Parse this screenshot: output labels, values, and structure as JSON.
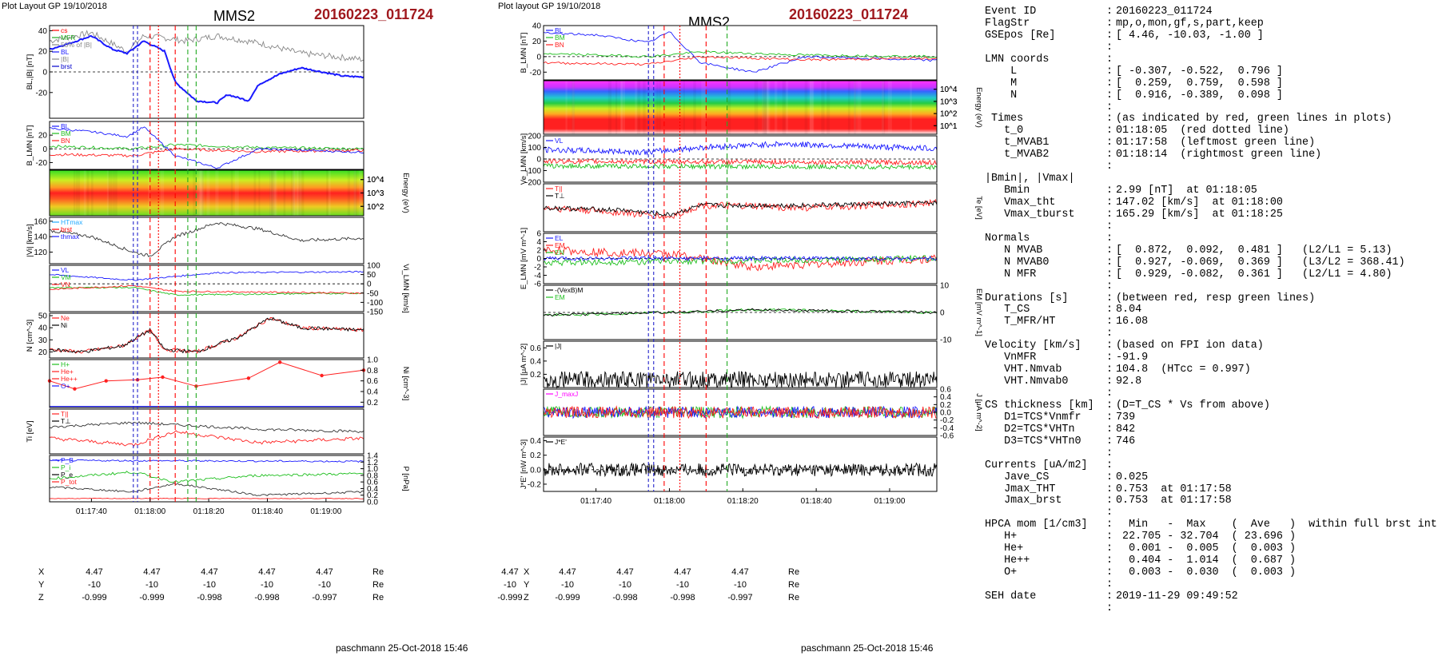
{
  "header": {
    "left_plot_layout": "Plot Layout GP 19/10/2018",
    "right_plot_layout": "Plot layout GP 19/10/2018",
    "spacecraft": "MMS2",
    "event_id": "20160223_011724"
  },
  "footer": {
    "left": "paschmann 25-Oct-2018 15:46",
    "right": "paschmann 25-Oct-2018 15:46"
  },
  "time_ticks": [
    "01:17:40",
    "01:18:00",
    "01:18:20",
    "01:18:40",
    "01:19:00"
  ],
  "position_table": {
    "rows": [
      {
        "label": "X",
        "values": [
          "4.47",
          "4.47",
          "4.47",
          "4.47",
          "4.47"
        ],
        "unit": "Re"
      },
      {
        "label": "Y",
        "values": [
          "-10",
          "-10",
          "-10",
          "-10",
          "-10"
        ],
        "unit": "Re"
      },
      {
        "label": "Z",
        "values": [
          "-0.999",
          "-0.999",
          "-0.998",
          "-0.998",
          "-0.997"
        ],
        "unit": "Re"
      }
    ]
  },
  "colors": {
    "id_red": "#a0191e",
    "L": "#1a1aff",
    "M": "#1fbf1f",
    "N": "#ff2020",
    "black": "#000000",
    "red_marker": "#ff0000",
    "green_marker": "#22aa22",
    "blue_marker": "#2222cc",
    "magenta": "#ff00ff",
    "cyan": "#22aaff"
  },
  "chart_data": [
    {
      "type": "line",
      "panel": "BL_|B|",
      "ylabel": "BL,|B| [nT]",
      "ylim": [
        -45,
        45
      ],
      "yticks": [
        "40",
        "20",
        "0",
        "-20"
      ],
      "legend": [
        "cs",
        "MFR",
        "50% of |B|",
        "BL",
        "|B|",
        "brst"
      ],
      "series": [
        {
          "name": "BL",
          "color": "blue",
          "x": [
            0,
            10,
            20,
            30,
            37,
            45,
            55,
            60,
            70,
            80,
            85,
            95,
            100,
            110,
            120,
            130,
            140,
            150
          ],
          "y": [
            22,
            28,
            35,
            22,
            18,
            30,
            20,
            -10,
            -28,
            -30,
            -22,
            -28,
            -12,
            -2,
            4,
            0,
            -4,
            -5
          ]
        },
        {
          "name": "|B|",
          "color": "gray",
          "x": [
            0,
            20,
            37,
            45,
            55,
            65,
            80,
            100,
            120,
            150
          ],
          "y": [
            30,
            38,
            20,
            35,
            33,
            30,
            35,
            28,
            18,
            12
          ]
        }
      ]
    },
    {
      "type": "line",
      "panel": "B_LMN",
      "ylabel": "B_LMN [nT]",
      "ylim": [
        -30,
        40
      ],
      "yticks": [
        "20",
        "0",
        "-20"
      ],
      "legend": [
        "BL",
        "BM",
        "BN"
      ],
      "series": [
        {
          "name": "BL",
          "x": [
            0,
            20,
            37,
            45,
            60,
            80,
            100,
            150
          ],
          "y": [
            30,
            25,
            18,
            32,
            -10,
            -28,
            0,
            -5
          ]
        },
        {
          "name": "BM",
          "x": [
            0,
            40,
            60,
            100,
            150
          ],
          "y": [
            4,
            0,
            6,
            2,
            0
          ]
        },
        {
          "name": "BN",
          "x": [
            0,
            40,
            60,
            100,
            150
          ],
          "y": [
            -8,
            -10,
            0,
            -4,
            -2
          ]
        }
      ]
    },
    {
      "type": "heatmap",
      "panel": "ion_energy_spectrogram",
      "ylabel": "Energy (eV)",
      "yticks": [
        "10^4",
        "10^3",
        "10^2"
      ]
    },
    {
      "type": "line",
      "panel": "|Vi|",
      "ylabel": "|Vi| [km/s]",
      "ylim": [
        105,
        165
      ],
      "yticks": [
        "160",
        "140",
        "120"
      ],
      "legend": [
        "HTmax",
        "brst",
        "thmax"
      ],
      "series": [
        {
          "name": "|Vi|",
          "x": [
            0,
            20,
            40,
            48,
            60,
            80,
            100,
            120,
            150
          ],
          "y": [
            148,
            140,
            120,
            115,
            140,
            158,
            150,
            135,
            138
          ]
        }
      ]
    },
    {
      "type": "line",
      "panel": "Vi_LMN",
      "ylabel": "Vi_LMN [km/s]",
      "ylim": [
        -150,
        100
      ],
      "yticks": [
        "100",
        "50",
        "0",
        "-50",
        "-100",
        "-150"
      ],
      "legend": [
        "VL",
        "VM",
        "VN"
      ],
      "series": [
        {
          "name": "VL",
          "x": [
            0,
            40,
            60,
            80,
            150
          ],
          "y": [
            50,
            20,
            40,
            60,
            65
          ]
        },
        {
          "name": "VM",
          "x": [
            0,
            40,
            60,
            150
          ],
          "y": [
            -20,
            -20,
            -60,
            -50
          ]
        },
        {
          "name": "VN",
          "x": [
            0,
            40,
            60,
            150
          ],
          "y": [
            -30,
            -10,
            -40,
            -50
          ]
        }
      ]
    },
    {
      "type": "line",
      "panel": "N",
      "ylabel": "N [cm^-3]",
      "ylim": [
        15,
        52
      ],
      "yticks": [
        "50",
        "40",
        "30",
        "20"
      ],
      "legend": [
        "Ne",
        "Ni"
      ],
      "series": [
        {
          "name": "Ne",
          "x": [
            0,
            15,
            35,
            48,
            55,
            70,
            90,
            105,
            120,
            150
          ],
          "y": [
            22,
            20,
            25,
            38,
            22,
            20,
            32,
            48,
            40,
            38
          ]
        },
        {
          "name": "Ni",
          "x": [
            0,
            15,
            35,
            48,
            55,
            70,
            90,
            105,
            120,
            150
          ],
          "y": [
            22,
            20,
            25,
            38,
            22,
            20,
            32,
            48,
            40,
            38
          ]
        }
      ]
    },
    {
      "type": "line",
      "panel": "HPCA_Ni",
      "ylabel": "Ni [cm^-3]",
      "ylim": [
        0.1,
        1.0
      ],
      "yticks": [
        "1.0",
        "0.8",
        "0.6",
        "0.4",
        "0.2"
      ],
      "legend": [
        "H+",
        "He+",
        "He++",
        "O+"
      ],
      "series": [
        {
          "name": "He++",
          "x": [
            0,
            12,
            27,
            42,
            54,
            70,
            95,
            110,
            130,
            150
          ],
          "y": [
            0.6,
            0.45,
            0.6,
            0.62,
            0.67,
            0.5,
            0.65,
            0.95,
            0.7,
            0.8
          ]
        }
      ]
    },
    {
      "type": "line",
      "panel": "Ti",
      "ylabel": "Ti [eV]",
      "legend": [
        "T||",
        "T⊥"
      ],
      "series": [
        {
          "name": "T||",
          "x": [
            0,
            40,
            60,
            100,
            150
          ],
          "y": [
            0.6,
            0.7,
            0.65,
            0.55,
            0.5
          ]
        },
        {
          "name": "T⊥",
          "x": [
            0,
            40,
            60,
            100,
            150
          ],
          "y": [
            0.35,
            0.2,
            0.5,
            0.25,
            0.35
          ]
        }
      ]
    },
    {
      "type": "line",
      "panel": "P",
      "ylabel": "P [nPa]",
      "ylim": [
        0,
        1.4
      ],
      "yticks": [
        "1.4",
        "1.2",
        "1.0",
        "0.8",
        "0.6",
        "0.4",
        "0.2",
        "0.0"
      ],
      "legend": [
        "P_B",
        "P_i",
        "P_e",
        "P_tot"
      ]
    },
    {
      "type": "line",
      "panel": "B_LMN_right",
      "ylabel": "B_LMN [nT]",
      "ylim": [
        -30,
        40
      ],
      "yticks": [
        "40",
        "20",
        "0",
        "-20"
      ],
      "legend": [
        "BL",
        "BM",
        "BN"
      ]
    },
    {
      "type": "heatmap",
      "panel": "electron_energy_spectrogram",
      "ylabel": "Energy (eV)",
      "yticks": [
        "10^4",
        "10^3",
        "10^2",
        "10^1"
      ]
    },
    {
      "type": "line",
      "panel": "Ve_LMN",
      "ylabel": "Ve_LMN [km/s]",
      "ylim": [
        -200,
        200
      ],
      "yticks": [
        "200",
        "100",
        "0",
        "-100",
        "-200"
      ],
      "legend": [
        "VL"
      ]
    },
    {
      "type": "line",
      "panel": "Te",
      "ylabel": "Te [eV]",
      "legend": [
        "T||",
        "T⊥"
      ]
    },
    {
      "type": "line",
      "panel": "E_LMN",
      "ylabel": "E_LMN [mV m^-1]",
      "ylim": [
        -6,
        6
      ],
      "yticks": [
        "6",
        "4",
        "2",
        "0",
        "-2",
        "-4",
        "-6"
      ],
      "legend": [
        "EL",
        "EM",
        "EN"
      ]
    },
    {
      "type": "line",
      "panel": "EM",
      "ylabel": "EM [mV m^-1]",
      "ylim": [
        -10,
        10
      ],
      "yticks": [
        "10",
        "0",
        "-10"
      ],
      "legend": [
        "-(VexB)M",
        "EM"
      ]
    },
    {
      "type": "line",
      "panel": "|J|",
      "ylabel": "|J| [μA m^-2]",
      "ylim": [
        0,
        0.7
      ],
      "yticks": [
        "0.6",
        "0.4",
        "0.2"
      ],
      "legend": [
        "|J|"
      ]
    },
    {
      "type": "line",
      "panel": "J_LMN",
      "ylabel": "J [μA m^-2]",
      "ylim": [
        -0.6,
        0.6
      ],
      "yticks": [
        "0.6",
        "0.4",
        "0.2",
        "0.0",
        "-0.2",
        "-0.4",
        "-0.6"
      ],
      "legend": [
        "J_maxJ"
      ]
    },
    {
      "type": "line",
      "panel": "J*E'",
      "ylabel": "J*E' [nW m^-3]",
      "ylim": [
        -0.3,
        0.45
      ],
      "yticks": [
        "0.4",
        "0.2",
        "0.0",
        "-0.2"
      ],
      "legend": [
        "J*E'"
      ]
    }
  ],
  "info": {
    "rows": [
      {
        "key": "Event ID",
        "sep": ":",
        "val": "20160223_011724"
      },
      {
        "key": "FlagStr",
        "sep": ":",
        "val": "mp,o,mon,gf,s,part,keep"
      },
      {
        "key": "GSEpos [Re]",
        "sep": ":",
        "val": "[ 4.46, -10.03, -1.00 ]"
      },
      {
        "key": "",
        "sep": ":",
        "val": ""
      },
      {
        "key": "LMN coords",
        "sep": ":",
        "val": ""
      },
      {
        "key": "    L",
        "sep": ":",
        "val": "[ -0.307, -0.522,  0.796 ]"
      },
      {
        "key": "    M",
        "sep": ":",
        "val": "[  0.259,  0.759,  0.598 ]"
      },
      {
        "key": "    N",
        "sep": ":",
        "val": "[  0.916, -0.389,  0.098 ]"
      },
      {
        "key": "",
        "sep": ":",
        "val": ""
      },
      {
        "key": " Times",
        "sep": ":",
        "val": "(as indicated by red, green lines in plots)"
      },
      {
        "key": "   t_0",
        "sep": ":",
        "val": "01:18:05  (red dotted line)"
      },
      {
        "key": "   t_MVAB1",
        "sep": ":",
        "val": "01:17:58  (leftmost green line)"
      },
      {
        "key": "   t_MVAB2",
        "sep": ":",
        "val": "01:18:14  (rightmost green line)"
      },
      {
        "key": "",
        "sep": ":",
        "val": ""
      },
      {
        "key": "|Bmin|, |Vmax|",
        "sep": "",
        "val": ""
      },
      {
        "key": "   Bmin",
        "sep": ":",
        "val": "2.99 [nT]  at 01:18:05"
      },
      {
        "key": "   Vmax_tht",
        "sep": ":",
        "val": "147.02 [km/s]  at 01:18:00"
      },
      {
        "key": "   Vmax_tburst",
        "sep": ":",
        "val": "165.29 [km/s]  at 01:18:25"
      },
      {
        "key": "",
        "sep": ":",
        "val": ""
      },
      {
        "key": "Normals",
        "sep": ":",
        "val": ""
      },
      {
        "key": "   N MVAB",
        "sep": ":",
        "val": "[  0.872,  0.092,  0.481 ]   (L2/L1 = 5.13)"
      },
      {
        "key": "   N MVAB0",
        "sep": ":",
        "val": "[  0.927, -0.069,  0.369 ]   (L3/L2 = 368.41)"
      },
      {
        "key": "   N MFR",
        "sep": ":",
        "val": "[  0.929, -0.082,  0.361 ]   (L2/L1 = 4.80)"
      },
      {
        "key": "",
        "sep": ":",
        "val": ""
      },
      {
        "key": "Durations [s]",
        "sep": ":",
        "val": "(between red, resp green lines)"
      },
      {
        "key": "   T_CS",
        "sep": ":",
        "val": "8.04"
      },
      {
        "key": "   T_MFR/HT",
        "sep": ":",
        "val": "16.08"
      },
      {
        "key": "",
        "sep": ":",
        "val": ""
      },
      {
        "key": "Velocity [km/s]",
        "sep": ":",
        "val": "(based on FPI ion data)"
      },
      {
        "key": "   VnMFR",
        "sep": ":",
        "val": "-91.9"
      },
      {
        "key": "   VHT.Nmvab",
        "sep": ":",
        "val": "104.8  (HTcc = 0.997)"
      },
      {
        "key": "   VHT.Nmvab0",
        "sep": ":",
        "val": "92.8"
      },
      {
        "key": "",
        "sep": ":",
        "val": ""
      },
      {
        "key": "CS thickness [km]",
        "sep": ":",
        "val": "(D=T_CS * Vs from above)"
      },
      {
        "key": "   D1=TCS*Vnmfr",
        "sep": ":",
        "val": "739"
      },
      {
        "key": "   D2=TCS*VHTn",
        "sep": ":",
        "val": "842"
      },
      {
        "key": "   D3=TCS*VHTn0",
        "sep": ":",
        "val": "746"
      },
      {
        "key": "",
        "sep": ":",
        "val": ""
      },
      {
        "key": "Currents [uA/m2]",
        "sep": ":",
        "val": ""
      },
      {
        "key": "   Jave_CS",
        "sep": ":",
        "val": "0.025"
      },
      {
        "key": "   Jmax_THT",
        "sep": ":",
        "val": "0.753  at 01:17:58"
      },
      {
        "key": "   Jmax_brst",
        "sep": ":",
        "val": "0.753  at 01:17:58"
      },
      {
        "key": "",
        "sep": ":",
        "val": ""
      },
      {
        "key": "HPCA mom [1/cm3]",
        "sep": ":",
        "val": "  Min   -  Max    (  Ave   )  within full brst int"
      },
      {
        "key": "   H+",
        "sep": ":",
        "val": " 22.705 - 32.704  ( 23.696 )"
      },
      {
        "key": "   He+",
        "sep": ":",
        "val": "  0.001 -  0.005  (  0.003 )"
      },
      {
        "key": "   He++",
        "sep": ":",
        "val": "  0.404 -  1.014  (  0.687 )"
      },
      {
        "key": "   O+",
        "sep": ":",
        "val": "  0.003 -  0.030  (  0.003 )"
      },
      {
        "key": "",
        "sep": ":",
        "val": ""
      },
      {
        "key": "SEH date",
        "sep": ":",
        "val": "2019-11-29 09:49:52"
      },
      {
        "key": "",
        "sep": ":",
        "val": ""
      }
    ]
  }
}
